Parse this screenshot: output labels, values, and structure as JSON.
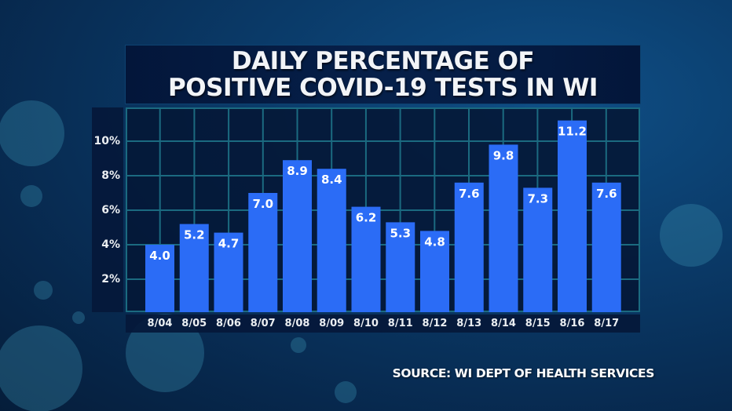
{
  "chart_data": {
    "type": "bar",
    "title": "DAILY PERCENTAGE OF POSITIVE COVID-19 TESTS IN WI",
    "title_lines": [
      "DAILY PERCENTAGE OF",
      "POSITIVE COVID-19 TESTS IN WI"
    ],
    "categories": [
      "8/04",
      "8/05",
      "8/06",
      "8/07",
      "8/08",
      "8/09",
      "8/10",
      "8/11",
      "8/12",
      "8/13",
      "8/14",
      "8/15",
      "8/16",
      "8/17"
    ],
    "values": [
      4.0,
      5.2,
      4.7,
      7.0,
      8.9,
      8.4,
      6.2,
      5.3,
      4.8,
      7.6,
      9.8,
      7.3,
      11.2,
      7.6
    ],
    "value_labels": [
      "4.0",
      "5.2",
      "4.7",
      "7.0",
      "8.9",
      "8.4",
      "6.2",
      "5.3",
      "4.8",
      "7.6",
      "9.8",
      "7.3",
      "11.2",
      "7.6"
    ],
    "yticks": [
      2,
      4,
      6,
      8,
      10
    ],
    "ytick_labels": [
      "2%",
      "4%",
      "6%",
      "8%",
      "10%"
    ],
    "ylim": [
      0,
      11.9
    ],
    "xlabel": "",
    "ylabel": "",
    "grid": true,
    "legend": "none",
    "source": "SOURCE: WI DEPT OF HEALTH SERVICES",
    "colors": {
      "bar": "#2b6cf6",
      "grid": "#1b6a80",
      "plot_bg": "#041736",
      "text": "#ffffff"
    }
  }
}
